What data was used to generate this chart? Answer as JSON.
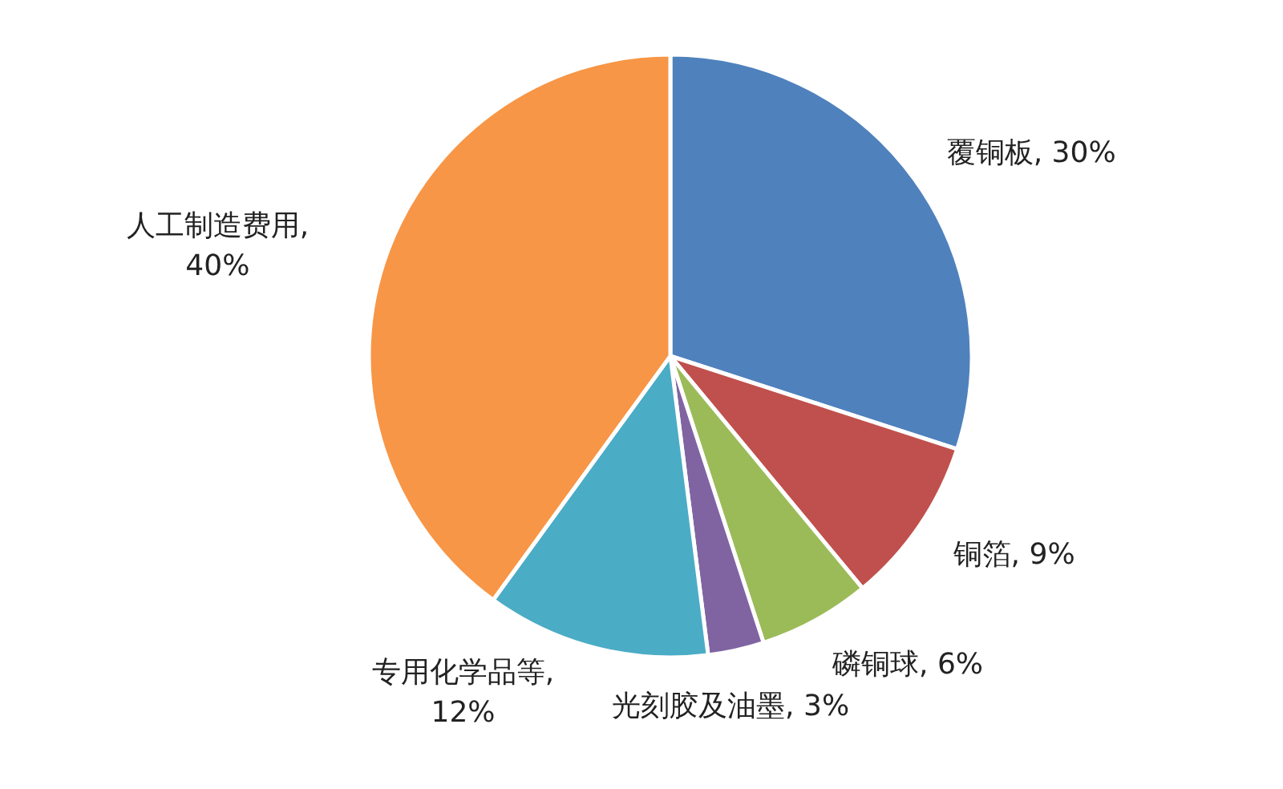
{
  "chart_data": {
    "type": "pie",
    "categories": [
      "覆铜板",
      "铜箔",
      "磷铜球",
      "光刻胶及油墨",
      "专用化学品等",
      "人工制造费用"
    ],
    "values": [
      30,
      9,
      6,
      3,
      12,
      40
    ],
    "value_labels": [
      ", 30%",
      ", 9%",
      ", 6%",
      ", 3%",
      ", 12%",
      ", 40%"
    ],
    "colors": [
      "#4f81bd",
      "#c0504d",
      "#9bbb59",
      "#8064a2",
      "#4bacc6",
      "#f79646"
    ]
  }
}
